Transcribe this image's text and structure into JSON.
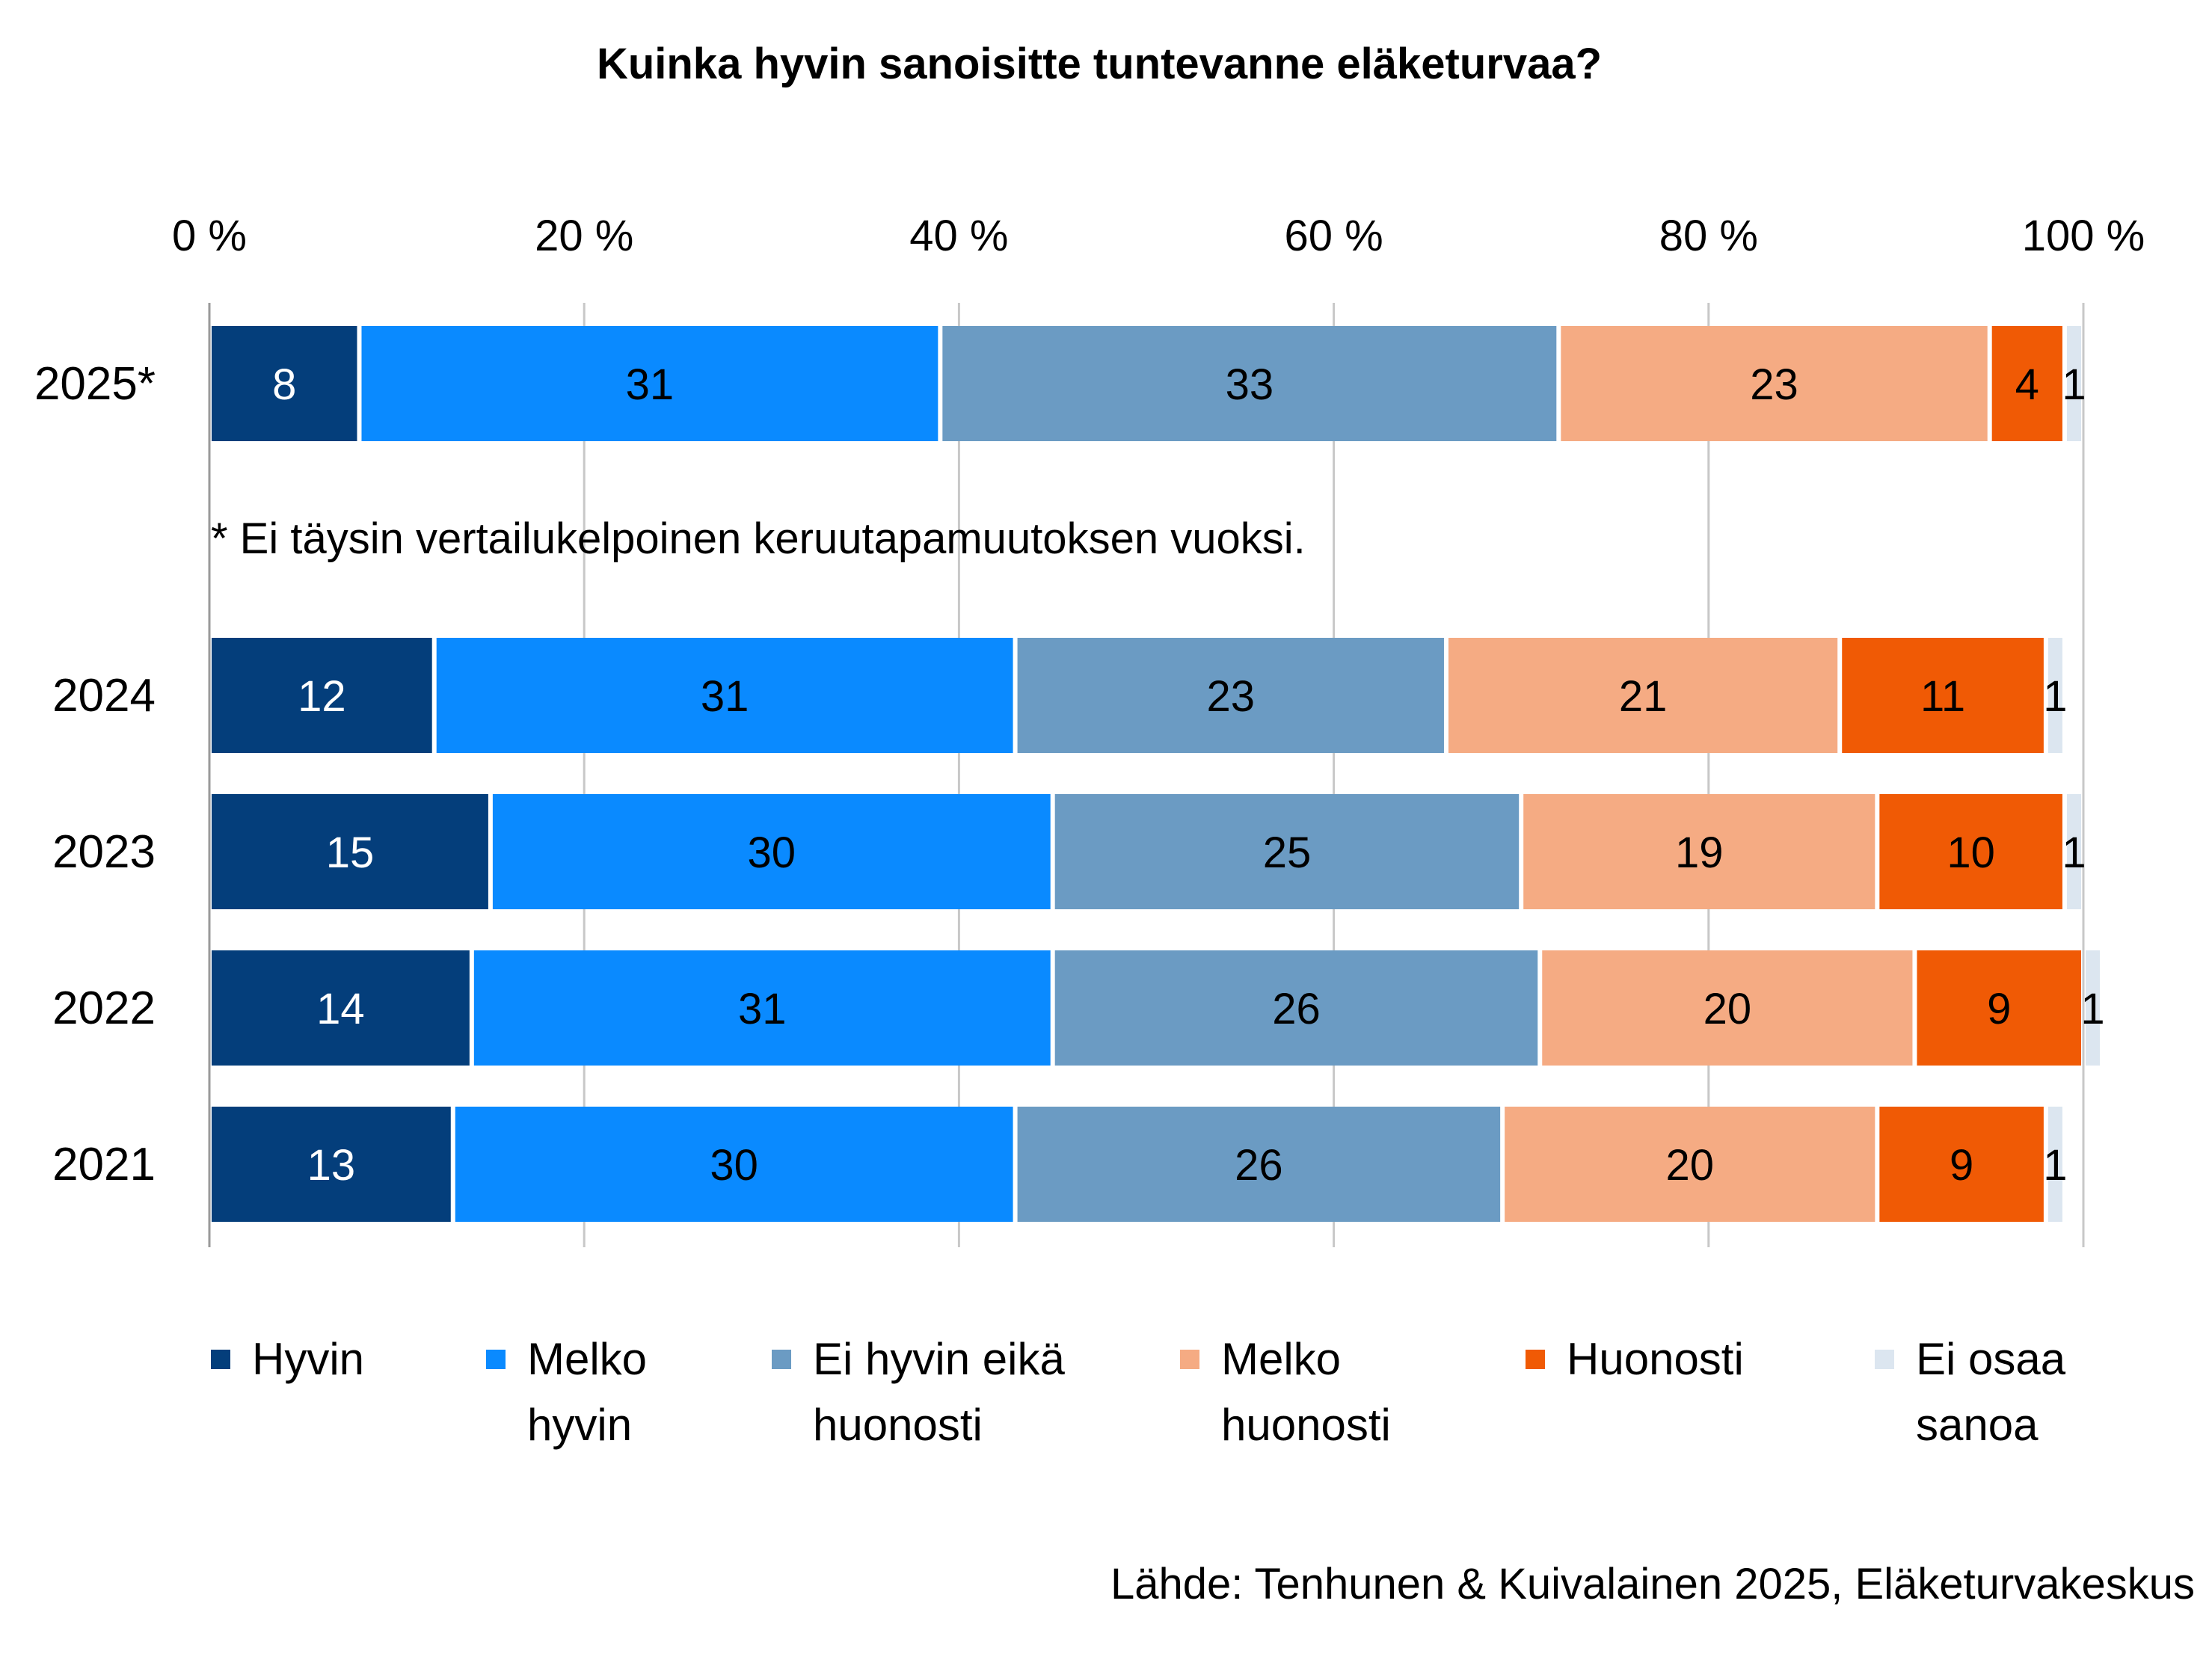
{
  "chart_data": {
    "type": "bar",
    "orientation": "horizontal",
    "stacked": true,
    "title": "Kuinka hyvin sanoisitte tuntevanne eläketurvaa?",
    "x_ticks": [
      "0 %",
      "20 %",
      "40 %",
      "60 %",
      "80 %",
      "100 %"
    ],
    "xlim": [
      0,
      100
    ],
    "categories": [
      "2025*",
      "2024",
      "2023",
      "2022",
      "2021"
    ],
    "series": [
      {
        "name": "Hyvin",
        "legend_lines": [
          "Hyvin"
        ],
        "color": "#043E7B",
        "label_color": "#FFFFFF",
        "values": [
          8,
          12,
          15,
          14,
          13
        ]
      },
      {
        "name": "Melko hyvin",
        "legend_lines": [
          "Melko",
          "hyvin"
        ],
        "color": "#0A8AFF",
        "label_color": "#000000",
        "values": [
          31,
          31,
          30,
          31,
          30
        ]
      },
      {
        "name": "Ei hyvin eikä huonosti",
        "legend_lines": [
          "Ei hyvin eikä",
          "huonosti"
        ],
        "color": "#6B9BC3",
        "label_color": "#000000",
        "values": [
          33,
          23,
          25,
          26,
          26
        ]
      },
      {
        "name": "Melko huonosti",
        "legend_lines": [
          "Melko",
          "huonosti"
        ],
        "color": "#F5AB83",
        "label_color": "#000000",
        "values": [
          23,
          21,
          19,
          20,
          20
        ]
      },
      {
        "name": "Huonosti",
        "legend_lines": [
          "Huonosti"
        ],
        "color": "#F05A05",
        "label_color": "#000000",
        "values": [
          4,
          11,
          10,
          9,
          9
        ]
      },
      {
        "name": "Ei osaa sanoa",
        "legend_lines": [
          "Ei osaa",
          "sanoa"
        ],
        "color": "#DCE6F0",
        "label_color": "#000000",
        "values": [
          1,
          1,
          1,
          1,
          1
        ]
      }
    ],
    "note": "* Ei täysin vertailukelpoinen keruutapamuutoksen vuoksi.",
    "source": "Lähde: Tenhunen & Kuivalainen 2025, Eläketurvakeskus",
    "grid": true,
    "legend_position": "bottom"
  }
}
